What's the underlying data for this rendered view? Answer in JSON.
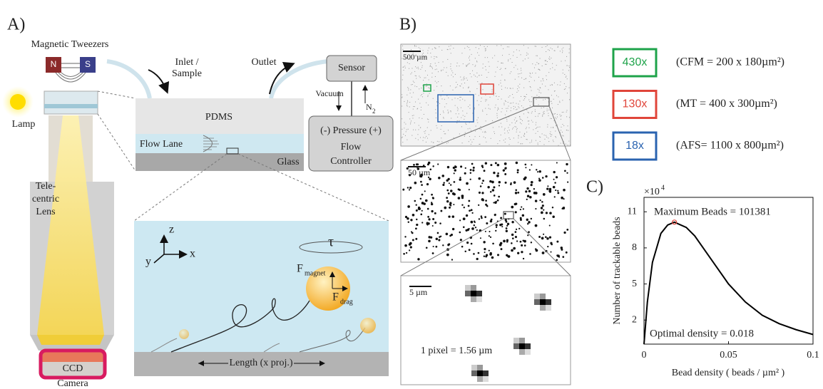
{
  "panel_a": {
    "label": "A)",
    "tweezers": "Magnetic Tweezers",
    "north": "N",
    "south": "S",
    "lamp": "Lamp",
    "lens": [
      "Tele-",
      "centric",
      "Lens"
    ],
    "ccd": "CCD",
    "camera": "Camera",
    "inlet": [
      "Inlet /",
      "Sample"
    ],
    "outlet": "Outlet",
    "sensor": "Sensor",
    "vacuum": "Vacuum",
    "n2": "N",
    "n2_sub": "2",
    "pressure": "(-) Pressure (+)",
    "controller": [
      "Flow",
      "Controller"
    ],
    "pdms": "PDMS",
    "flow_lane": "Flow Lane",
    "glass": "Glass",
    "axis_z": "z",
    "axis_y": "y",
    "axis_x": "x",
    "tau": "τ",
    "f": "F",
    "f_magnet": "magnet",
    "f_drag": "drag",
    "length": "Length (x proj.)"
  },
  "panel_b": {
    "label": "B)",
    "scale_1": "500 µm",
    "scale_2": "50 µm",
    "scale_3": "5 µm",
    "pixel": "1 pixel = 1.56 µm"
  },
  "legend": [
    {
      "mag": "430x",
      "desc": "(CFM = 200 x 180µm²)",
      "color": "#1ea34a"
    },
    {
      "mag": "130x",
      "desc": "(MT = 400 x 300µm²)",
      "color": "#e0453a"
    },
    {
      "mag": "18x",
      "desc": "(AFS= 1100 x 800µm²)",
      "color": "#2a63b0"
    }
  ],
  "chart_data": {
    "type": "line",
    "label": "C)",
    "multiplier": "×10",
    "multiplier_exp": "4",
    "x_label": "Bead density ( beads / µm² )",
    "y_label": "Number of trackable beads",
    "xlim": [
      0,
      0.1
    ],
    "ylim": [
      0,
      12.2
    ],
    "xticks": [
      0,
      0.05,
      0.1
    ],
    "yticks": [
      2,
      5,
      8,
      11
    ],
    "series": [
      {
        "color": "#000000",
        "x": [
          0,
          0.002,
          0.005,
          0.01,
          0.014,
          0.018,
          0.025,
          0.03,
          0.04,
          0.05,
          0.06,
          0.07,
          0.08,
          0.09,
          0.1
        ],
        "values": [
          0,
          3.5,
          6.8,
          9.2,
          9.9,
          10.14,
          9.7,
          9.0,
          7.0,
          5.0,
          3.5,
          2.4,
          1.7,
          1.2,
          0.8
        ]
      }
    ],
    "peak": {
      "x": 0.018,
      "y": 10.1381,
      "color": "#e0453a"
    },
    "annotations": [
      "Maximum Beads = 101381",
      "Optimal density = 0.018"
    ]
  }
}
